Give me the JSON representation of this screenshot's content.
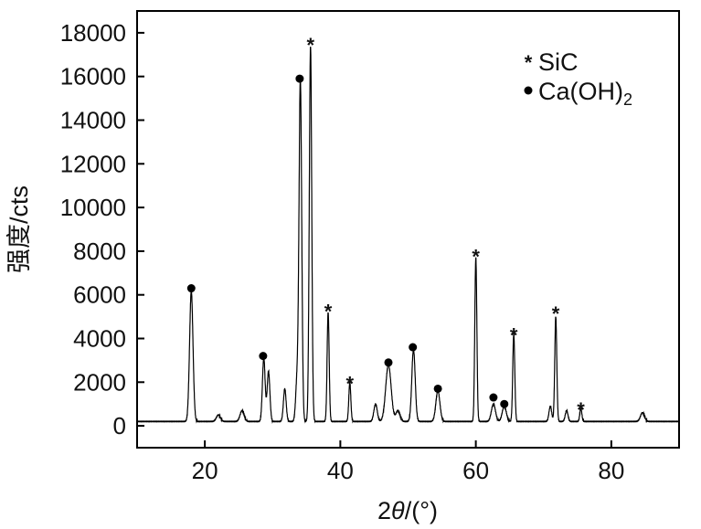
{
  "chart_data": {
    "type": "line",
    "xlabel_prefix": "2",
    "xlabel_theta": "θ",
    "xlabel_suffix": "/(°)",
    "ylabel": "强度/cts",
    "xlim": [
      10,
      90
    ],
    "ylim": [
      -1000,
      19000
    ],
    "x_ticks": [
      20,
      40,
      60,
      80
    ],
    "x_tick_labels": [
      "20",
      "40",
      "60",
      "80"
    ],
    "y_ticks": [
      0,
      2000,
      4000,
      6000,
      8000,
      10000,
      12000,
      14000,
      16000,
      18000
    ],
    "y_tick_labels": [
      "0",
      "2000",
      "4000",
      "6000",
      "8000",
      "10000",
      "12000",
      "14000",
      "16000",
      "18000"
    ],
    "grid": false,
    "legend_position": "top-right",
    "legend": [
      {
        "symbol": "star",
        "label": "SiC",
        "subscript": ""
      },
      {
        "symbol": "circle",
        "label": "Ca(OH)",
        "subscript": "2"
      }
    ],
    "background": 200,
    "peaks": [
      {
        "x": 18.0,
        "y": 6000,
        "w": 0.25,
        "phase": "Ca(OH)2"
      },
      {
        "x": 22.0,
        "y": 300,
        "w": 0.3,
        "phase": ""
      },
      {
        "x": 25.5,
        "y": 500,
        "w": 0.3,
        "phase": ""
      },
      {
        "x": 28.7,
        "y": 2900,
        "w": 0.2,
        "phase": "Ca(OH)2"
      },
      {
        "x": 29.4,
        "y": 2300,
        "w": 0.2,
        "phase": ""
      },
      {
        "x": 31.8,
        "y": 1500,
        "w": 0.2,
        "phase": ""
      },
      {
        "x": 33.6,
        "y": 1800,
        "w": 0.2,
        "phase": ""
      },
      {
        "x": 34.1,
        "y": 15600,
        "w": 0.2,
        "phase": "Ca(OH)2"
      },
      {
        "x": 35.6,
        "y": 17200,
        "w": 0.18,
        "phase": "SiC"
      },
      {
        "x": 38.2,
        "y": 5000,
        "w": 0.15,
        "phase": "SiC"
      },
      {
        "x": 41.4,
        "y": 1800,
        "w": 0.15,
        "phase": "SiC"
      },
      {
        "x": 45.2,
        "y": 800,
        "w": 0.25,
        "phase": ""
      },
      {
        "x": 47.1,
        "y": 2600,
        "w": 0.4,
        "phase": "Ca(OH)2"
      },
      {
        "x": 48.5,
        "y": 500,
        "w": 0.3,
        "phase": ""
      },
      {
        "x": 50.8,
        "y": 3300,
        "w": 0.25,
        "phase": "Ca(OH)2"
      },
      {
        "x": 54.4,
        "y": 1400,
        "w": 0.3,
        "phase": "Ca(OH)2"
      },
      {
        "x": 60.0,
        "y": 7500,
        "w": 0.15,
        "phase": "SiC"
      },
      {
        "x": 62.6,
        "y": 800,
        "w": 0.3,
        "phase": "Ca(OH)2"
      },
      {
        "x": 64.2,
        "y": 700,
        "w": 0.3,
        "phase": "Ca(OH)2"
      },
      {
        "x": 65.6,
        "y": 4000,
        "w": 0.15,
        "phase": "SiC"
      },
      {
        "x": 71.0,
        "y": 700,
        "w": 0.2,
        "phase": ""
      },
      {
        "x": 71.8,
        "y": 4800,
        "w": 0.15,
        "phase": "SiC"
      },
      {
        "x": 73.4,
        "y": 500,
        "w": 0.2,
        "phase": ""
      },
      {
        "x": 75.5,
        "y": 600,
        "w": 0.15,
        "phase": "SiC"
      },
      {
        "x": 84.6,
        "y": 400,
        "w": 0.3,
        "phase": ""
      }
    ],
    "markers": [
      {
        "symbol": "circle",
        "x": 18.0,
        "y": 6300
      },
      {
        "symbol": "circle",
        "x": 28.6,
        "y": 3200
      },
      {
        "symbol": "circle",
        "x": 34.0,
        "y": 15900
      },
      {
        "symbol": "star",
        "x": 35.6,
        "y": 17500
      },
      {
        "symbol": "star",
        "x": 38.2,
        "y": 5300
      },
      {
        "symbol": "star",
        "x": 41.4,
        "y": 2000
      },
      {
        "symbol": "circle",
        "x": 47.1,
        "y": 2900
      },
      {
        "symbol": "circle",
        "x": 50.7,
        "y": 3600
      },
      {
        "symbol": "circle",
        "x": 54.4,
        "y": 1700
      },
      {
        "symbol": "star",
        "x": 60.0,
        "y": 7800
      },
      {
        "symbol": "circle",
        "x": 62.6,
        "y": 1300
      },
      {
        "symbol": "circle",
        "x": 64.2,
        "y": 1000
      },
      {
        "symbol": "star",
        "x": 65.6,
        "y": 4200
      },
      {
        "symbol": "star",
        "x": 71.8,
        "y": 5200
      },
      {
        "symbol": "star",
        "x": 75.5,
        "y": 800
      }
    ]
  }
}
